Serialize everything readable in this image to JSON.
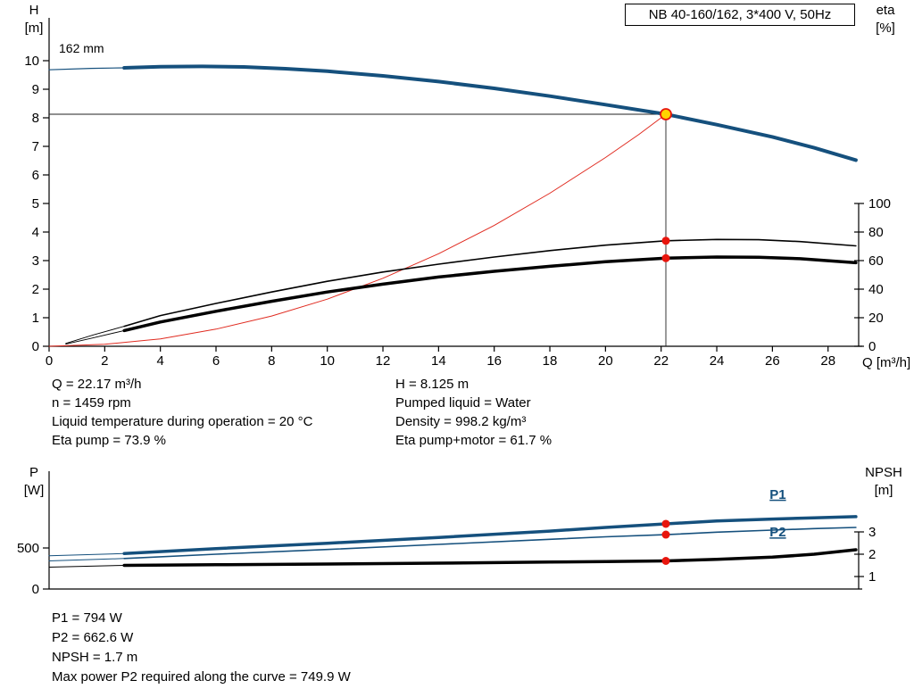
{
  "model_box": "NB 40-160/162, 3*400 V, 50Hz",
  "labels": {
    "h": [
      "H",
      "[m]"
    ],
    "eta": [
      "eta",
      "[%]"
    ],
    "q": "Q [m³/h]",
    "p": [
      "P",
      "[W]"
    ],
    "npsh": [
      "NPSH",
      "[m]"
    ]
  },
  "colors": {
    "blue": "#15507d",
    "red": "#e02b20",
    "black": "#000000",
    "duty_fill": "#ffd400",
    "dot_red": "#e8150d",
    "axis": "#000000"
  },
  "chart_data": [
    {
      "type": "line",
      "name": "hq-eta-chart",
      "impeller_label": "162 mm",
      "axes": {
        "x": {
          "label": "Q [m³/h]",
          "min": 0,
          "max": 29.1,
          "ticks": [
            0,
            2,
            4,
            6,
            8,
            10,
            12,
            14,
            16,
            18,
            20,
            22,
            24,
            26,
            28
          ]
        },
        "left": {
          "label": "H [m]",
          "min": 0,
          "max": 11.5,
          "ticks": [
            0,
            1,
            2,
            3,
            4,
            5,
            6,
            7,
            8,
            9,
            10
          ]
        },
        "right": {
          "label": "eta [%]",
          "min": 0,
          "max": 230,
          "ticks": [
            0,
            20,
            40,
            60,
            80,
            100
          ]
        }
      },
      "series": [
        {
          "name": "head-curve-lead",
          "axis": "left",
          "color": "blue",
          "width": 1.2,
          "points": [
            [
              0,
              9.68
            ],
            [
              1.5,
              9.73
            ],
            [
              2.7,
              9.75
            ]
          ]
        },
        {
          "name": "system-curve",
          "axis": "left",
          "color": "red",
          "width": 1,
          "points": [
            [
              0,
              0
            ],
            [
              2,
              0.07
            ],
            [
              4,
              0.26
            ],
            [
              6,
              0.6
            ],
            [
              8,
              1.06
            ],
            [
              10,
              1.65
            ],
            [
              12,
              2.38
            ],
            [
              14,
              3.24
            ],
            [
              16,
              4.23
            ],
            [
              18,
              5.36
            ],
            [
              20,
              6.61
            ],
            [
              21.2,
              7.42
            ],
            [
              22.17,
              8.125
            ]
          ]
        },
        {
          "name": "eta-pump-curve-lead",
          "axis": "right",
          "color": "black",
          "width": 0.9,
          "points": [
            [
              0.6,
              2
            ],
            [
              1.6,
              8
            ],
            [
              2.7,
              14
            ]
          ]
        },
        {
          "name": "eta-pump-motor-curve-lead",
          "axis": "right",
          "color": "black",
          "width": 0.9,
          "points": [
            [
              0.6,
              1.5
            ],
            [
              1.6,
              6
            ],
            [
              2.7,
              11
            ]
          ]
        },
        {
          "name": "eta-pump-curve",
          "axis": "right",
          "color": "black",
          "width": 1.6,
          "points": [
            [
              2.7,
              14
            ],
            [
              4,
              21.5
            ],
            [
              6,
              30
            ],
            [
              8,
              38
            ],
            [
              10,
              45.5
            ],
            [
              12,
              52
            ],
            [
              14,
              57.5
            ],
            [
              16,
              62.5
            ],
            [
              18,
              67
            ],
            [
              20,
              70.8
            ],
            [
              22.17,
              73.9
            ],
            [
              24,
              74.8
            ],
            [
              25.5,
              74.6
            ],
            [
              27,
              73.3
            ],
            [
              29,
              70.3
            ]
          ]
        },
        {
          "name": "eta-pump-motor-curve",
          "axis": "right",
          "color": "black",
          "width": 3.5,
          "points": [
            [
              2.7,
              11
            ],
            [
              4,
              17
            ],
            [
              6,
              24.5
            ],
            [
              8,
              31.5
            ],
            [
              10,
              38
            ],
            [
              12,
              43.5
            ],
            [
              14,
              48.5
            ],
            [
              16,
              52.5
            ],
            [
              18,
              56
            ],
            [
              20,
              59.2
            ],
            [
              22.17,
              61.7
            ],
            [
              24,
              62.5
            ],
            [
              25.5,
              62.3
            ],
            [
              27,
              61.3
            ],
            [
              29,
              58.5
            ]
          ]
        },
        {
          "name": "head-curve",
          "axis": "left",
          "color": "blue",
          "width": 4,
          "points": [
            [
              2.7,
              9.75
            ],
            [
              4,
              9.79
            ],
            [
              5.5,
              9.8
            ],
            [
              7,
              9.78
            ],
            [
              8.5,
              9.72
            ],
            [
              10,
              9.63
            ],
            [
              12,
              9.47
            ],
            [
              14,
              9.27
            ],
            [
              16,
              9.03
            ],
            [
              18,
              8.76
            ],
            [
              20,
              8.46
            ],
            [
              22.17,
              8.125
            ],
            [
              24,
              7.76
            ],
            [
              26,
              7.33
            ],
            [
              27.5,
              6.95
            ],
            [
              29,
              6.52
            ]
          ]
        }
      ],
      "duty": {
        "q": 22.17,
        "value": 8.125,
        "axis": "left",
        "crosshair": true
      },
      "markers": [
        {
          "q": 22.17,
          "value": 73.9,
          "axis": "right",
          "style": "dot",
          "name": "eta-pump-duty-dot"
        },
        {
          "q": 22.17,
          "value": 61.7,
          "axis": "right",
          "style": "dot",
          "name": "eta-pump-motor-duty-dot"
        },
        {
          "q": 22.17,
          "value": 8.125,
          "axis": "left",
          "style": "duty",
          "name": "duty-point"
        }
      ],
      "annotations": []
    },
    {
      "type": "line",
      "name": "power-npsh-chart",
      "axes": {
        "x": {
          "label": "",
          "min": 0,
          "max": 29.1,
          "ticks": []
        },
        "left": {
          "label": "P [W]",
          "min": 0,
          "max": 1435,
          "ticks": [
            0,
            500
          ]
        },
        "right": {
          "label": "NPSH [m]",
          "min": 0.44,
          "max": 5.72,
          "ticks": [
            1,
            2,
            3
          ]
        }
      },
      "series": [
        {
          "name": "p1-curve-lead",
          "axis": "left",
          "color": "blue",
          "width": 1,
          "points": [
            [
              0,
              405
            ],
            [
              2.7,
              432
            ]
          ]
        },
        {
          "name": "p2-curve-lead",
          "axis": "left",
          "color": "blue",
          "width": 1,
          "points": [
            [
              0,
              342
            ],
            [
              2.7,
              372
            ]
          ]
        },
        {
          "name": "npsh-curve-lead",
          "axis": "right",
          "color": "black",
          "width": 1,
          "points": [
            [
              0,
              1.42
            ],
            [
              2.7,
              1.5
            ]
          ]
        },
        {
          "name": "p2-curve",
          "axis": "left",
          "color": "blue",
          "width": 1.6,
          "points": [
            [
              2.7,
              372
            ],
            [
              6,
              424
            ],
            [
              10,
              482
            ],
            [
              14,
              544
            ],
            [
              18,
              606
            ],
            [
              20,
              636
            ],
            [
              22.17,
              662.6
            ],
            [
              24,
              692
            ],
            [
              26,
              718
            ],
            [
              27.5,
              736
            ],
            [
              29,
              750
            ]
          ]
        },
        {
          "name": "p1-curve",
          "axis": "left",
          "color": "blue",
          "width": 3.5,
          "points": [
            [
              2.7,
              432
            ],
            [
              6,
              492
            ],
            [
              10,
              558
            ],
            [
              14,
              628
            ],
            [
              18,
              706
            ],
            [
              20,
              750
            ],
            [
              22.17,
              794
            ],
            [
              24,
              828
            ],
            [
              26,
              852
            ],
            [
              27.5,
              868
            ],
            [
              29,
              882
            ]
          ]
        },
        {
          "name": "npsh-curve",
          "axis": "right",
          "color": "black",
          "width": 3.5,
          "points": [
            [
              2.7,
              1.5
            ],
            [
              6,
              1.53
            ],
            [
              10,
              1.56
            ],
            [
              14,
              1.6
            ],
            [
              18,
              1.65
            ],
            [
              20,
              1.67
            ],
            [
              22.17,
              1.7
            ],
            [
              24,
              1.77
            ],
            [
              26,
              1.87
            ],
            [
              27.5,
              2.0
            ],
            [
              29,
              2.2
            ]
          ]
        }
      ],
      "duty": null,
      "markers": [
        {
          "q": 22.17,
          "value": 794,
          "axis": "left",
          "style": "dot",
          "name": "p1-duty-dot"
        },
        {
          "q": 22.17,
          "value": 662.6,
          "axis": "left",
          "style": "dot",
          "name": "p2-duty-dot"
        },
        {
          "q": 22.17,
          "value": 1.7,
          "axis": "right",
          "style": "dot",
          "name": "npsh-duty-dot"
        }
      ],
      "annotations": [
        {
          "text": "P1",
          "q": 25.9,
          "value": 1100,
          "axis": "left"
        },
        {
          "text": "P2",
          "q": 25.9,
          "value": 640,
          "axis": "left"
        }
      ]
    }
  ],
  "info_top_left": [
    "Q = 22.17 m³/h",
    "n = 1459 rpm",
    "Liquid temperature during operation = 20 °C",
    "Eta pump = 73.9 %"
  ],
  "info_top_right": [
    "H = 8.125 m",
    "Pumped liquid = Water",
    "Density = 998.2 kg/m³",
    "Eta pump+motor = 61.7 %"
  ],
  "info_bottom": [
    "P1 = 794 W",
    "P2 = 662.6 W",
    "NPSH = 1.7 m",
    "Max power P2 required along the curve = 749.9 W"
  ]
}
